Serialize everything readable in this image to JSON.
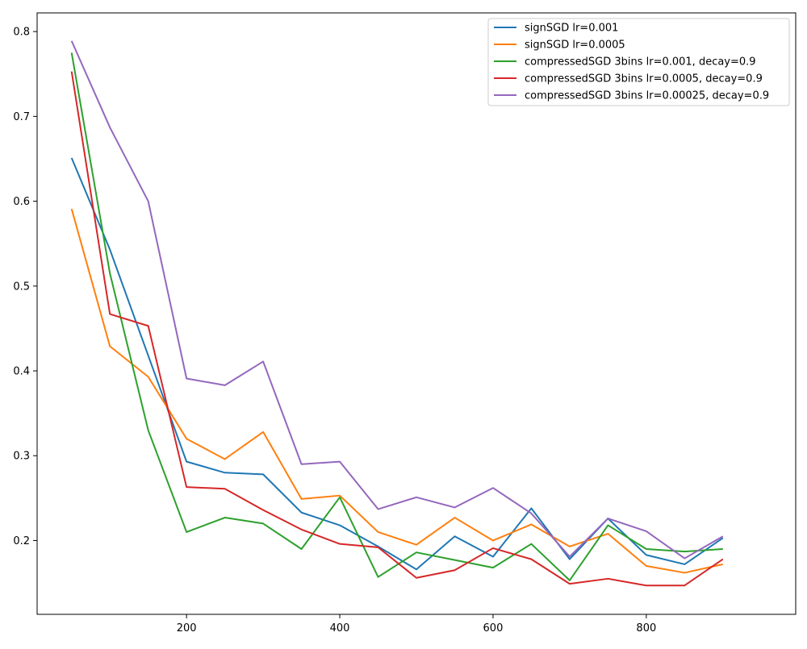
{
  "chart_data": {
    "type": "line",
    "title": "",
    "xlabel": "",
    "ylabel": "",
    "xlim": [
      5,
      995
    ],
    "ylim": [
      0.113,
      0.822
    ],
    "xticks": [
      200,
      400,
      600,
      800
    ],
    "yticks": [
      0.2,
      0.3,
      0.4,
      0.5,
      0.6,
      0.7,
      0.8
    ],
    "grid": false,
    "legend_position": "top-right",
    "x": [
      50,
      100,
      150,
      200,
      250,
      300,
      350,
      400,
      450,
      500,
      550,
      600,
      650,
      700,
      750,
      800,
      850,
      900
    ],
    "series": [
      {
        "name": "signSGD lr=0.001",
        "color": "#1f77b4",
        "values": [
          0.651,
          0.543,
          0.418,
          0.293,
          0.28,
          0.278,
          0.233,
          0.218,
          0.193,
          0.166,
          0.205,
          0.181,
          0.238,
          0.178,
          0.226,
          0.183,
          0.172,
          0.203
        ]
      },
      {
        "name": "signSGD lr=0.0005",
        "color": "#ff7f0e",
        "values": [
          0.591,
          0.429,
          0.393,
          0.32,
          0.296,
          0.328,
          0.249,
          0.253,
          0.21,
          0.195,
          0.227,
          0.2,
          0.219,
          0.193,
          0.208,
          0.17,
          0.162,
          0.172
        ]
      },
      {
        "name": "compressedSGD 3bins lr=0.001, decay=0.9",
        "color": "#2ca02c",
        "values": [
          0.775,
          0.515,
          0.33,
          0.21,
          0.227,
          0.22,
          0.19,
          0.251,
          0.157,
          0.186,
          0.177,
          0.168,
          0.196,
          0.153,
          0.218,
          0.19,
          0.187,
          0.19
        ]
      },
      {
        "name": "compressedSGD 3bins lr=0.0005, decay=0.9",
        "color": "#d62728",
        "values": [
          0.753,
          0.467,
          0.453,
          0.263,
          0.261,
          0.236,
          0.213,
          0.196,
          0.192,
          0.156,
          0.165,
          0.191,
          0.178,
          0.149,
          0.155,
          0.147,
          0.147,
          0.178
        ]
      },
      {
        "name": "compressedSGD 3bins lr=0.00025, decay=0.9",
        "color": "#9467bd",
        "values": [
          0.789,
          0.687,
          0.6,
          0.391,
          0.383,
          0.411,
          0.29,
          0.293,
          0.237,
          0.251,
          0.239,
          0.262,
          0.232,
          0.181,
          0.226,
          0.211,
          0.179,
          0.205
        ]
      }
    ]
  }
}
